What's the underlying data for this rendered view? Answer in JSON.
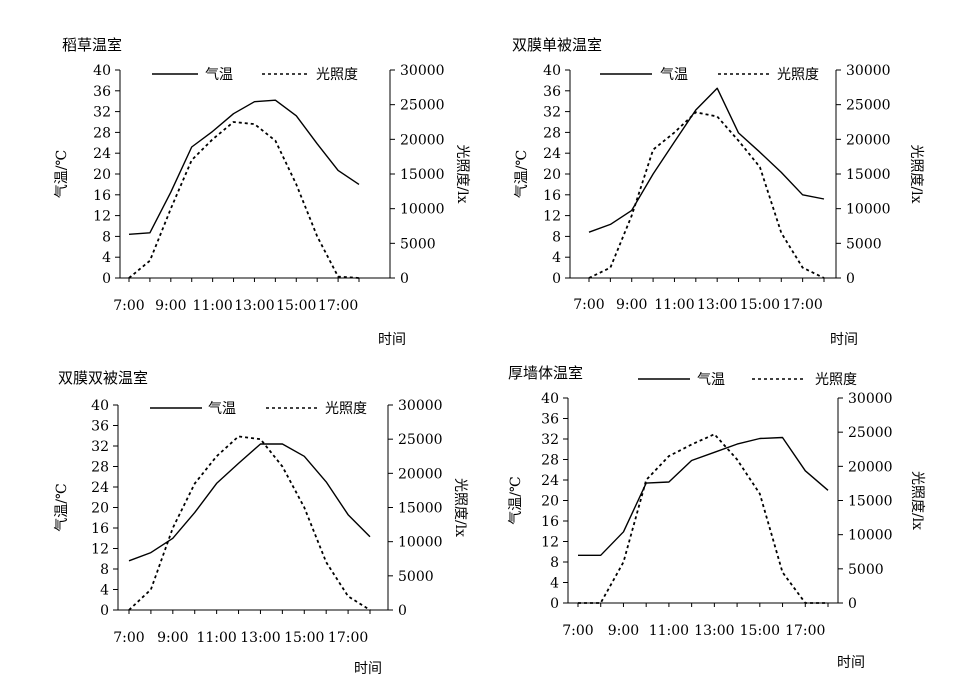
{
  "chart_data": [
    {
      "type": "line",
      "title": "稻草温室",
      "xlabel": "时间",
      "ylabel": "气温/℃",
      "y2label": "光照度/lx",
      "x": [
        7,
        8,
        9,
        10,
        11,
        12,
        13,
        14,
        15,
        16,
        17,
        18
      ],
      "xticks": [
        "7:00",
        "9:00",
        "11:00",
        "13:00",
        "15:00",
        "17:00"
      ],
      "ylim": [
        0,
        40
      ],
      "y2lim": [
        0,
        30000
      ],
      "yticks": [
        "0",
        "4",
        "8",
        "12",
        "16",
        "20",
        "24",
        "28",
        "32",
        "36",
        "40"
      ],
      "y2ticks": [
        "0",
        "5000",
        "10000",
        "15000",
        "20000",
        "25000",
        "30000"
      ],
      "legend_position": "top",
      "series": [
        {
          "name": "气温",
          "axis": "left",
          "style": "solid",
          "values": [
            8.4,
            8.7,
            16.5,
            25.2,
            28.2,
            31.6,
            33.9,
            34.2,
            31.2,
            25.8,
            20.7,
            18.0
          ]
        },
        {
          "name": "光照度",
          "axis": "right",
          "style": "dotted",
          "values": [
            0,
            2500,
            10000,
            17000,
            20000,
            22500,
            22200,
            19800,
            13500,
            6000,
            200,
            0
          ]
        }
      ]
    },
    {
      "type": "line",
      "title": "双膜单被温室",
      "xlabel": "时间",
      "ylabel": "气温/℃",
      "y2label": "光照度/lx",
      "x": [
        7,
        8,
        9,
        10,
        11,
        12,
        13,
        14,
        15,
        16,
        17,
        18
      ],
      "xticks": [
        "7:00",
        "9:00",
        "11:00",
        "13:00",
        "15:00",
        "17:00"
      ],
      "ylim": [
        0,
        40
      ],
      "y2lim": [
        0,
        30000
      ],
      "yticks": [
        "0",
        "4",
        "8",
        "12",
        "16",
        "20",
        "24",
        "28",
        "32",
        "36",
        "40"
      ],
      "y2ticks": [
        "0",
        "5000",
        "10000",
        "15000",
        "20000",
        "25000",
        "30000"
      ],
      "legend_position": "top",
      "series": [
        {
          "name": "气温",
          "axis": "left",
          "style": "solid",
          "values": [
            8.8,
            10.3,
            13.0,
            20.0,
            26.2,
            32.3,
            36.5,
            27.9,
            24.2,
            20.3,
            16.0,
            15.2
          ]
        },
        {
          "name": "光照度",
          "axis": "right",
          "style": "dotted",
          "values": [
            0,
            1500,
            9000,
            18500,
            21000,
            23900,
            23300,
            19800,
            16000,
            6500,
            1500,
            0
          ]
        }
      ]
    },
    {
      "type": "line",
      "title": "双膜双被温室",
      "xlabel": "时间",
      "ylabel": "气温/℃",
      "y2label": "光照度/lx",
      "x": [
        7,
        8,
        9,
        10,
        11,
        12,
        13,
        14,
        15,
        16,
        17,
        18
      ],
      "xticks": [
        "7:00",
        "9:00",
        "11:00",
        "13:00",
        "15:00",
        "17:00"
      ],
      "ylim": [
        0,
        40
      ],
      "y2lim": [
        0,
        30000
      ],
      "yticks": [
        "0",
        "4",
        "8",
        "12",
        "16",
        "20",
        "24",
        "28",
        "32",
        "36",
        "40"
      ],
      "y2ticks": [
        "0",
        "5000",
        "10000",
        "15000",
        "20000",
        "25000",
        "30000"
      ],
      "legend_position": "top",
      "series": [
        {
          "name": "气温",
          "axis": "left",
          "style": "solid",
          "values": [
            9.6,
            11.2,
            14.0,
            19.0,
            24.7,
            28.6,
            32.4,
            32.4,
            30.0,
            25.0,
            18.6,
            14.3
          ]
        },
        {
          "name": "光照度",
          "axis": "right",
          "style": "dotted",
          "values": [
            0,
            3000,
            12000,
            18500,
            22500,
            25400,
            25000,
            21000,
            15000,
            7000,
            2000,
            0
          ]
        }
      ]
    },
    {
      "type": "line",
      "title": "厚墙体温室",
      "xlabel": "时间",
      "ylabel": "气温/℃",
      "y2label": "光照度/lx",
      "x": [
        7,
        8,
        9,
        10,
        11,
        12,
        13,
        14,
        15,
        16,
        17,
        18
      ],
      "xticks": [
        "7:00",
        "9:00",
        "11:00",
        "13:00",
        "15:00",
        "17:00"
      ],
      "ylim": [
        0,
        40
      ],
      "y2lim": [
        0,
        30000
      ],
      "yticks": [
        "0",
        "4",
        "8",
        "12",
        "16",
        "20",
        "24",
        "28",
        "32",
        "36",
        "40"
      ],
      "y2ticks": [
        "0",
        "5000",
        "10000",
        "15000",
        "20000",
        "25000",
        "30000"
      ],
      "legend_position": "top",
      "series": [
        {
          "name": "气温",
          "axis": "left",
          "style": "solid",
          "values": [
            9.3,
            9.3,
            13.9,
            23.4,
            23.6,
            27.8,
            29.4,
            31.0,
            32.1,
            32.3,
            25.8,
            22.0
          ]
        },
        {
          "name": "光照度",
          "axis": "right",
          "style": "dotted",
          "values": [
            0,
            0,
            6000,
            18000,
            21500,
            23200,
            24700,
            21000,
            16000,
            4500,
            0,
            0
          ]
        }
      ]
    }
  ]
}
